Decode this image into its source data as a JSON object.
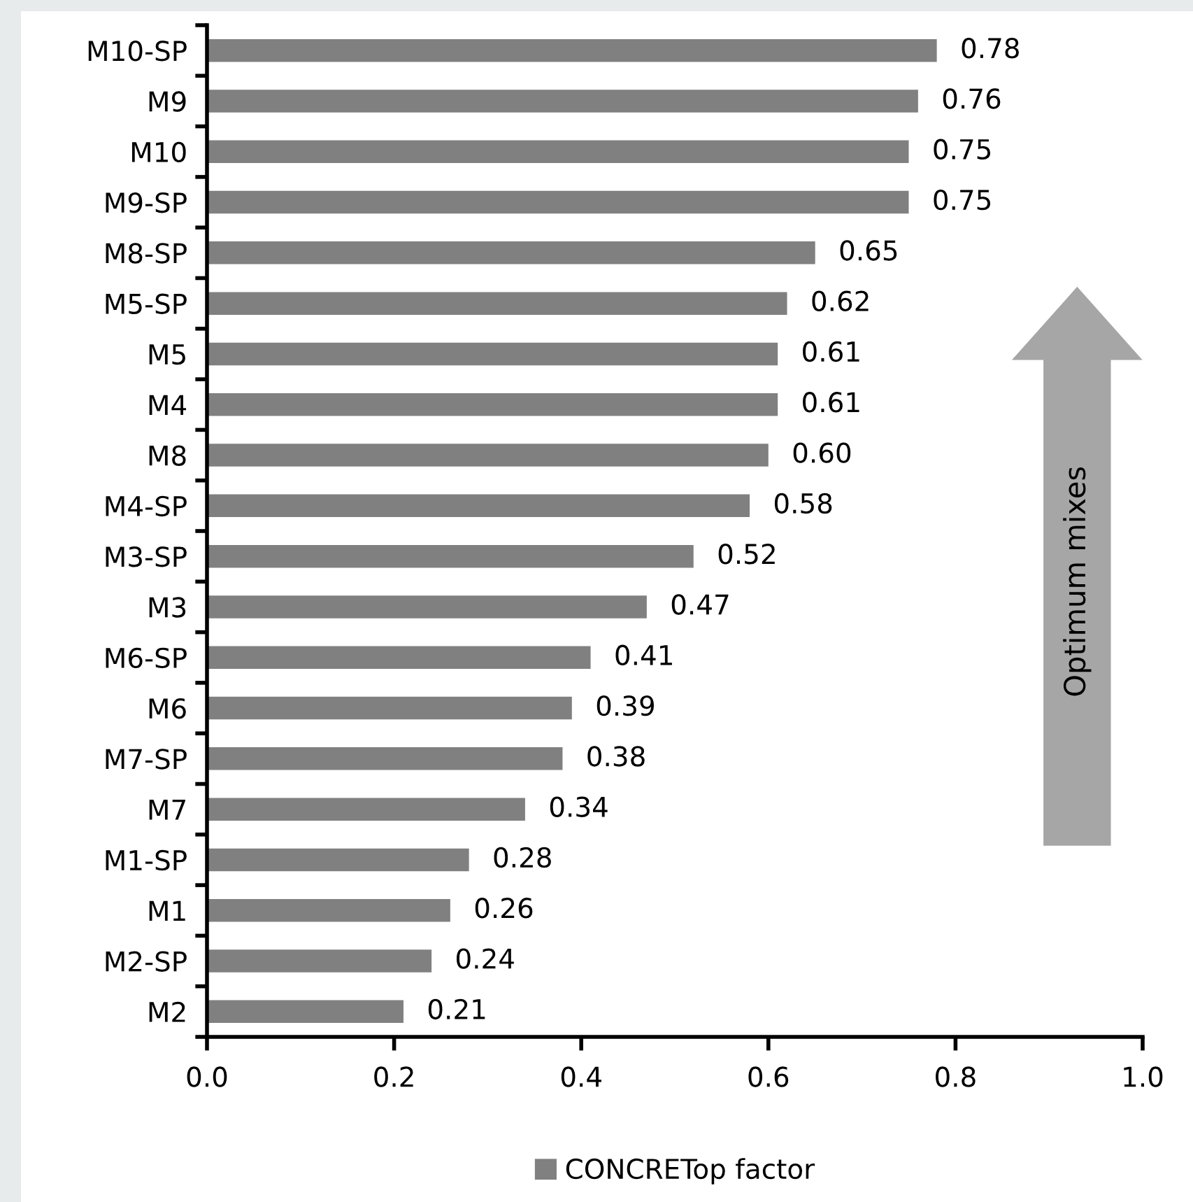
{
  "chart_data": {
    "type": "bar",
    "orientation": "horizontal",
    "categories": [
      "M10-SP",
      "M9",
      "M10",
      "M9-SP",
      "M8-SP",
      "M5-SP",
      "M5",
      "M4",
      "M8",
      "M4-SP",
      "M3-SP",
      "M3",
      "M6-SP",
      "M6",
      "M7-SP",
      "M7",
      "M1-SP",
      "M1",
      "M2-SP",
      "M2"
    ],
    "series": [
      {
        "name": "CONCRETop factor",
        "color": "#808080",
        "values": [
          0.78,
          0.76,
          0.75,
          0.75,
          0.65,
          0.62,
          0.61,
          0.61,
          0.6,
          0.58,
          0.52,
          0.47,
          0.41,
          0.39,
          0.38,
          0.34,
          0.28,
          0.26,
          0.24,
          0.21
        ],
        "value_labels": [
          "0.78",
          "0.76",
          "0.75",
          "0.75",
          "0.65",
          "0.62",
          "0.61",
          "0.61",
          "0.60",
          "0.58",
          "0.52",
          "0.47",
          "0.41",
          "0.39",
          "0.38",
          "0.34",
          "0.28",
          "0.26",
          "0.24",
          "0.21"
        ]
      }
    ],
    "xlim": [
      0,
      1.0
    ],
    "xticks": [
      {
        "value": 0,
        "label": "0.0"
      },
      {
        "value": 0.2,
        "label": "0.2"
      },
      {
        "value": 0.4,
        "label": "0.4"
      },
      {
        "value": 0.6,
        "label": "0.6"
      },
      {
        "value": 0.8,
        "label": "0.8"
      },
      {
        "value": 1.0,
        "label": "1.0"
      }
    ],
    "grid": false,
    "legend": "bottom",
    "annotations": [
      "Optimum mixes"
    ]
  }
}
